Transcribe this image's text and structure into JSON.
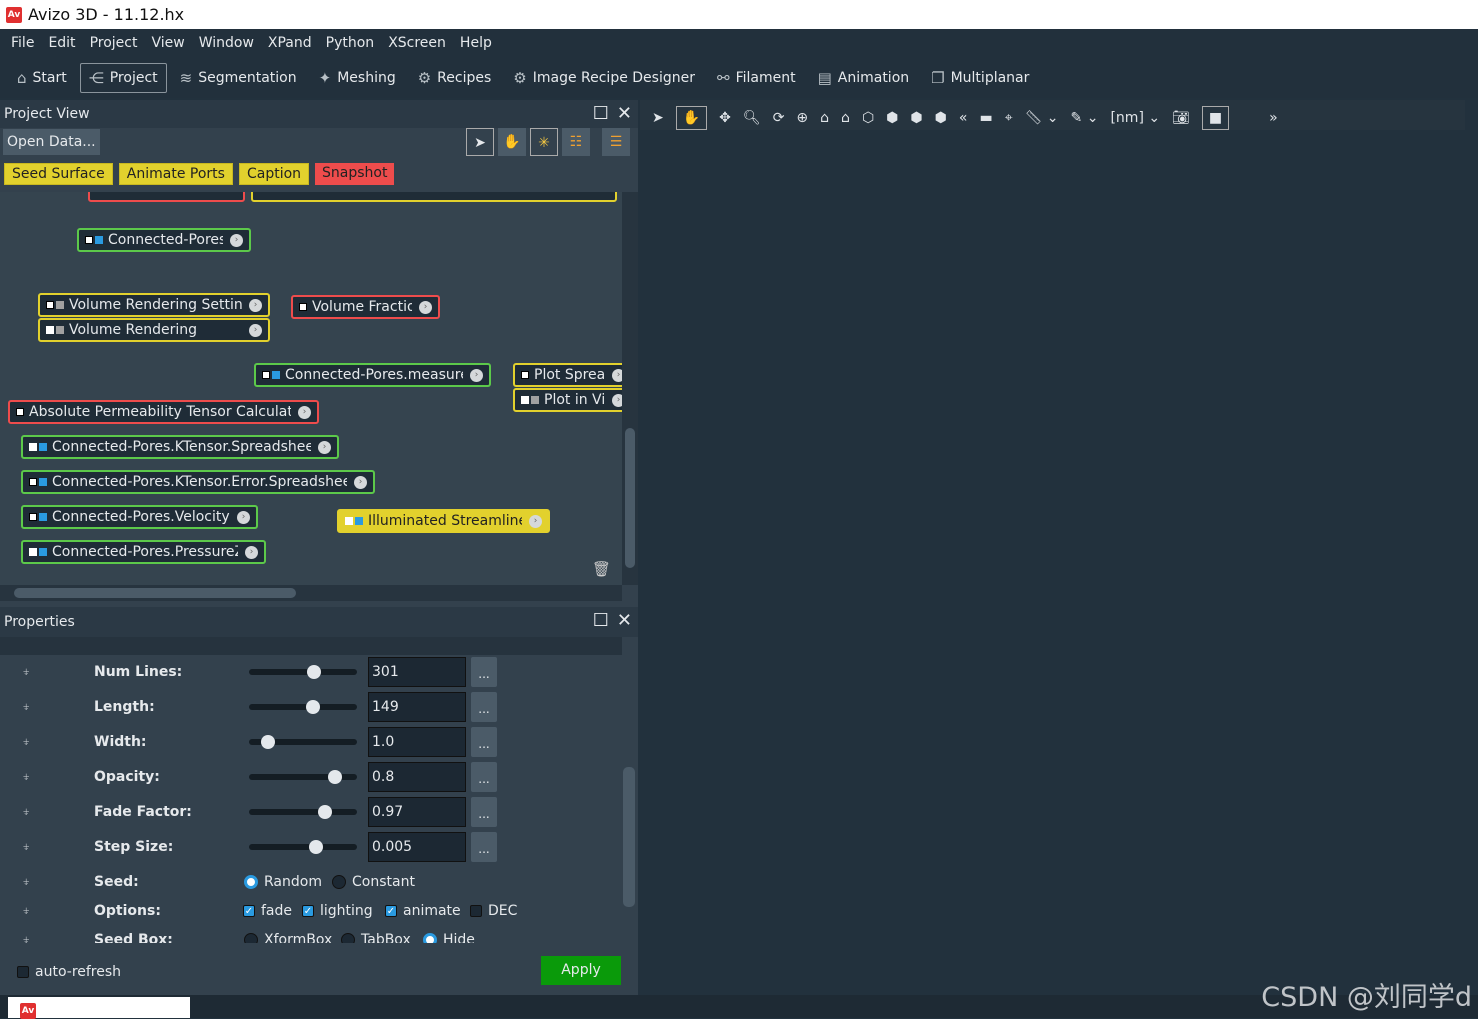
{
  "window": {
    "title": "Avizo 3D - 11.12.hx",
    "logo": "Av"
  },
  "menu": [
    "File",
    "Edit",
    "Project",
    "View",
    "Window",
    "XPand",
    "Python",
    "XScreen",
    "Help"
  ],
  "toolbar": [
    {
      "label": "Start",
      "icon": "home-icon"
    },
    {
      "label": "Project",
      "icon": "project-tree-icon",
      "active": true
    },
    {
      "label": "Segmentation",
      "icon": "layers-icon"
    },
    {
      "label": "Meshing",
      "icon": "mesh-icon"
    },
    {
      "label": "Recipes",
      "icon": "gears-icon"
    },
    {
      "label": "Image Recipe Designer",
      "icon": "recipe-designer-icon"
    },
    {
      "label": "Filament",
      "icon": "filament-icon"
    },
    {
      "label": "Animation",
      "icon": "film-icon"
    },
    {
      "label": "Multiplanar",
      "icon": "multiplanar-icon"
    }
  ],
  "project_view": {
    "title": "Project View",
    "open_data": "Open Data...",
    "quick_buttons": [
      "Seed Surface",
      "Animate Ports",
      "Caption",
      "Snapshot"
    ],
    "nodes": [
      {
        "label": "Connected-Pores*",
        "type": "g",
        "icons": [
          "m",
          "b"
        ]
      },
      {
        "label": "Volume Rendering Settings",
        "type": "y",
        "icons": [
          "m",
          "gr"
        ]
      },
      {
        "label": "Volume Rendering",
        "type": "y",
        "icons": [
          "w",
          "gr"
        ]
      },
      {
        "label": "Volume Fraction",
        "type": "r",
        "icons": [
          "m"
        ]
      },
      {
        "label": "Connected-Pores.measure*",
        "type": "g",
        "icons": [
          "m",
          "b"
        ]
      },
      {
        "label": "Plot Spreadsh",
        "type": "y",
        "icons": [
          "m"
        ]
      },
      {
        "label": "Plot in Viewe",
        "type": "y",
        "icons": [
          "w",
          "gr"
        ]
      },
      {
        "label": "Absolute Permeability Tensor Calculation",
        "type": "r",
        "icons": [
          "m"
        ]
      },
      {
        "label": "Connected-Pores.KTensor.Spreadsheet*",
        "type": "g",
        "icons": [
          "w",
          "b"
        ]
      },
      {
        "label": "Connected-Pores.KTensor.Error.Spreadsheet*",
        "type": "g",
        "icons": [
          "m",
          "b"
        ]
      },
      {
        "label": "Connected-Pores.VelocityZ*",
        "type": "g",
        "icons": [
          "m",
          "b"
        ]
      },
      {
        "label": "Illuminated Streamlines",
        "type": "ys",
        "icons": [
          "w",
          "b"
        ]
      },
      {
        "label": "Connected-Pores.PressureZ*",
        "type": "g",
        "icons": [
          "w",
          "b"
        ]
      }
    ]
  },
  "properties": {
    "title": "Properties",
    "sliders": [
      {
        "label": "Num Lines:",
        "value": "301",
        "fraction": 0.6
      },
      {
        "label": "Length:",
        "value": "149",
        "fraction": 0.59
      },
      {
        "label": "Width:",
        "value": "1.0",
        "fraction": 0.18
      },
      {
        "label": "Opacity:",
        "value": "0.8",
        "fraction": 0.8
      },
      {
        "label": "Fade Factor:",
        "value": "0.97",
        "fraction": 0.7
      },
      {
        "label": "Step Size:",
        "value": "0.005",
        "fraction": 0.62
      }
    ],
    "seed": {
      "label": "Seed:",
      "options": [
        "Random",
        "Constant"
      ],
      "selected": "Random"
    },
    "options": {
      "label": "Options:",
      "items": [
        {
          "label": "fade",
          "checked": true
        },
        {
          "label": "lighting",
          "checked": true
        },
        {
          "label": "animate",
          "checked": true
        },
        {
          "label": "DEC",
          "checked": false
        }
      ]
    },
    "seed_box": {
      "label": "Seed Box:",
      "options": [
        "XformBox",
        "TabBox",
        "Hide"
      ],
      "selected": "Hide"
    },
    "dots": "...",
    "auto_refresh": "auto-refresh",
    "apply": "Apply"
  },
  "viewer_toolbar": {
    "unit": "[nm]",
    "more": "»"
  },
  "colors": {
    "box": "#ff8c00",
    "plane": "#0000ff",
    "apply": "#0a9a0a"
  },
  "watermark": "CSDN @刘同学d"
}
